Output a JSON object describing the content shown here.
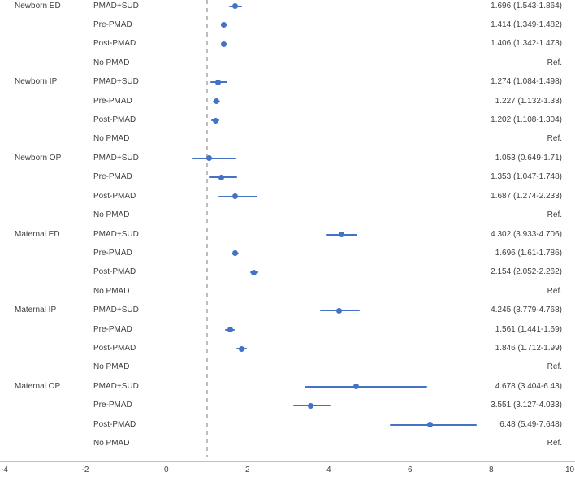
{
  "chart_data": {
    "type": "scatter",
    "chart_kind": "forest-plot",
    "title": "",
    "xlabel": "",
    "ylabel": "",
    "xlim": [
      -4,
      10
    ],
    "x_ticks": [
      "-4",
      "-2",
      "0",
      "2",
      "4",
      "6",
      "8",
      "10"
    ],
    "reference_line_x": 1,
    "grid": false,
    "legend_position": "none",
    "groups": [
      {
        "name": "Newborn ED",
        "rows": [
          {
            "category": "PMAD+SUD",
            "estimate": 1.696,
            "ci_low": 1.543,
            "ci_high": 1.864,
            "value_label": "1.696 (1.543-1.864)"
          },
          {
            "category": "Pre-PMAD",
            "estimate": 1.414,
            "ci_low": 1.349,
            "ci_high": 1.482,
            "value_label": "1.414 (1.349-1.482)"
          },
          {
            "category": "Post-PMAD",
            "estimate": 1.406,
            "ci_low": 1.342,
            "ci_high": 1.473,
            "value_label": "1.406 (1.342-1.473)"
          },
          {
            "category": "No PMAD",
            "estimate": null,
            "ci_low": null,
            "ci_high": null,
            "value_label": "Ref."
          }
        ]
      },
      {
        "name": "Newborn IP",
        "rows": [
          {
            "category": "PMAD+SUD",
            "estimate": 1.274,
            "ci_low": 1.084,
            "ci_high": 1.498,
            "value_label": "1.274 (1.084-1.498)"
          },
          {
            "category": "Pre-PMAD",
            "estimate": 1.227,
            "ci_low": 1.132,
            "ci_high": 1.33,
            "value_label": "1.227 (1.132-1.33)"
          },
          {
            "category": "Post-PMAD",
            "estimate": 1.202,
            "ci_low": 1.108,
            "ci_high": 1.304,
            "value_label": "1.202 (1.108-1.304)"
          },
          {
            "category": "No PMAD",
            "estimate": null,
            "ci_low": null,
            "ci_high": null,
            "value_label": "Ref."
          }
        ]
      },
      {
        "name": "Newborn OP",
        "rows": [
          {
            "category": "PMAD+SUD",
            "estimate": 1.053,
            "ci_low": 0.649,
            "ci_high": 1.71,
            "value_label": "1.053 (0.649-1.71)"
          },
          {
            "category": "Pre-PMAD",
            "estimate": 1.353,
            "ci_low": 1.047,
            "ci_high": 1.748,
            "value_label": "1.353 (1.047-1.748)"
          },
          {
            "category": "Post-PMAD",
            "estimate": 1.687,
            "ci_low": 1.274,
            "ci_high": 2.233,
            "value_label": "1.687 (1.274-2.233)"
          },
          {
            "category": "No PMAD",
            "estimate": null,
            "ci_low": null,
            "ci_high": null,
            "value_label": "Ref."
          }
        ]
      },
      {
        "name": "Maternal ED",
        "rows": [
          {
            "category": "PMAD+SUD",
            "estimate": 4.302,
            "ci_low": 3.933,
            "ci_high": 4.706,
            "value_label": "4.302 (3.933-4.706)"
          },
          {
            "category": "Pre-PMAD",
            "estimate": 1.696,
            "ci_low": 1.61,
            "ci_high": 1.786,
            "value_label": "1.696 (1.61-1.786)"
          },
          {
            "category": "Post-PMAD",
            "estimate": 2.154,
            "ci_low": 2.052,
            "ci_high": 2.262,
            "value_label": "2.154 (2.052-2.262)"
          },
          {
            "category": "No PMAD",
            "estimate": null,
            "ci_low": null,
            "ci_high": null,
            "value_label": "Ref."
          }
        ]
      },
      {
        "name": "Maternal IP",
        "rows": [
          {
            "category": "PMAD+SUD",
            "estimate": 4.245,
            "ci_low": 3.779,
            "ci_high": 4.768,
            "value_label": "4.245 (3.779-4.768)"
          },
          {
            "category": "Pre-PMAD",
            "estimate": 1.561,
            "ci_low": 1.441,
            "ci_high": 1.69,
            "value_label": "1.561 (1.441-1.69)"
          },
          {
            "category": "Post-PMAD",
            "estimate": 1.846,
            "ci_low": 1.712,
            "ci_high": 1.99,
            "value_label": "1.846 (1.712-1.99)"
          },
          {
            "category": "No PMAD",
            "estimate": null,
            "ci_low": null,
            "ci_high": null,
            "value_label": "Ref."
          }
        ]
      },
      {
        "name": "Maternal OP",
        "rows": [
          {
            "category": "PMAD+SUD",
            "estimate": 4.678,
            "ci_low": 3.404,
            "ci_high": 6.43,
            "value_label": "4.678 (3.404-6.43)"
          },
          {
            "category": "Pre-PMAD",
            "estimate": 3.551,
            "ci_low": 3.127,
            "ci_high": 4.033,
            "value_label": "3.551 (3.127-4.033)"
          },
          {
            "category": "Post-PMAD",
            "estimate": 6.48,
            "ci_low": 5.49,
            "ci_high": 7.648,
            "value_label": "6.48 (5.49-7.648)"
          },
          {
            "category": "No PMAD",
            "estimate": null,
            "ci_low": null,
            "ci_high": null,
            "value_label": "Ref."
          }
        ]
      }
    ],
    "colors": {
      "marker": "#4472C4",
      "ci_line": "#4472C4",
      "reference_line": "#BDBDBD",
      "axis_line": "#BFBFBF",
      "text": "#404040"
    }
  }
}
